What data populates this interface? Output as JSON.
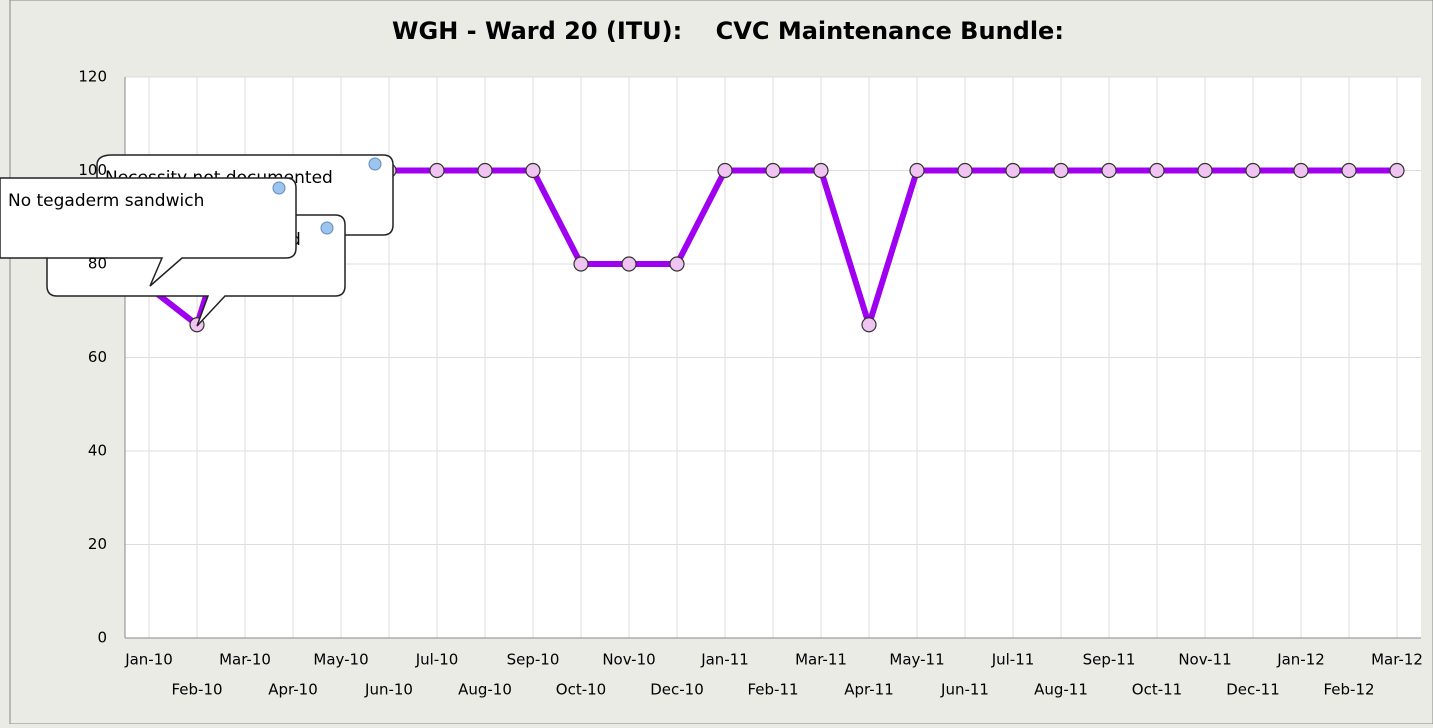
{
  "chart_data": {
    "type": "line",
    "title": "WGH - Ward 20 (ITU):    CVC Maintenance Bundle:",
    "categories": [
      "Jan-10",
      "Feb-10",
      "Mar-10",
      "Apr-10",
      "May-10",
      "Jun-10",
      "Jul-10",
      "Aug-10",
      "Sep-10",
      "Oct-10",
      "Nov-10",
      "Dec-10",
      "Jan-11",
      "Feb-11",
      "Mar-11",
      "Apr-11",
      "May-11",
      "Jun-11",
      "Jul-11",
      "Aug-11",
      "Sep-11",
      "Oct-11",
      "Nov-11",
      "Dec-11",
      "Jan-12",
      "Feb-12",
      "Mar-12"
    ],
    "series": [
      {
        "color": "#a000f0",
        "values": [
          75,
          67,
          100,
          100,
          100,
          100,
          100,
          100,
          100,
          80,
          80,
          80,
          100,
          100,
          100,
          67,
          100,
          100,
          100,
          100,
          100,
          100,
          100,
          100,
          100,
          100,
          100
        ]
      }
    ],
    "ylim": [
      0,
      120
    ],
    "yticks": [
      0,
      20,
      40,
      60,
      80,
      100,
      120
    ],
    "grid": true,
    "annotations": [
      "Necessity not documented",
      "d",
      "No tegaderm sandwich"
    ]
  }
}
